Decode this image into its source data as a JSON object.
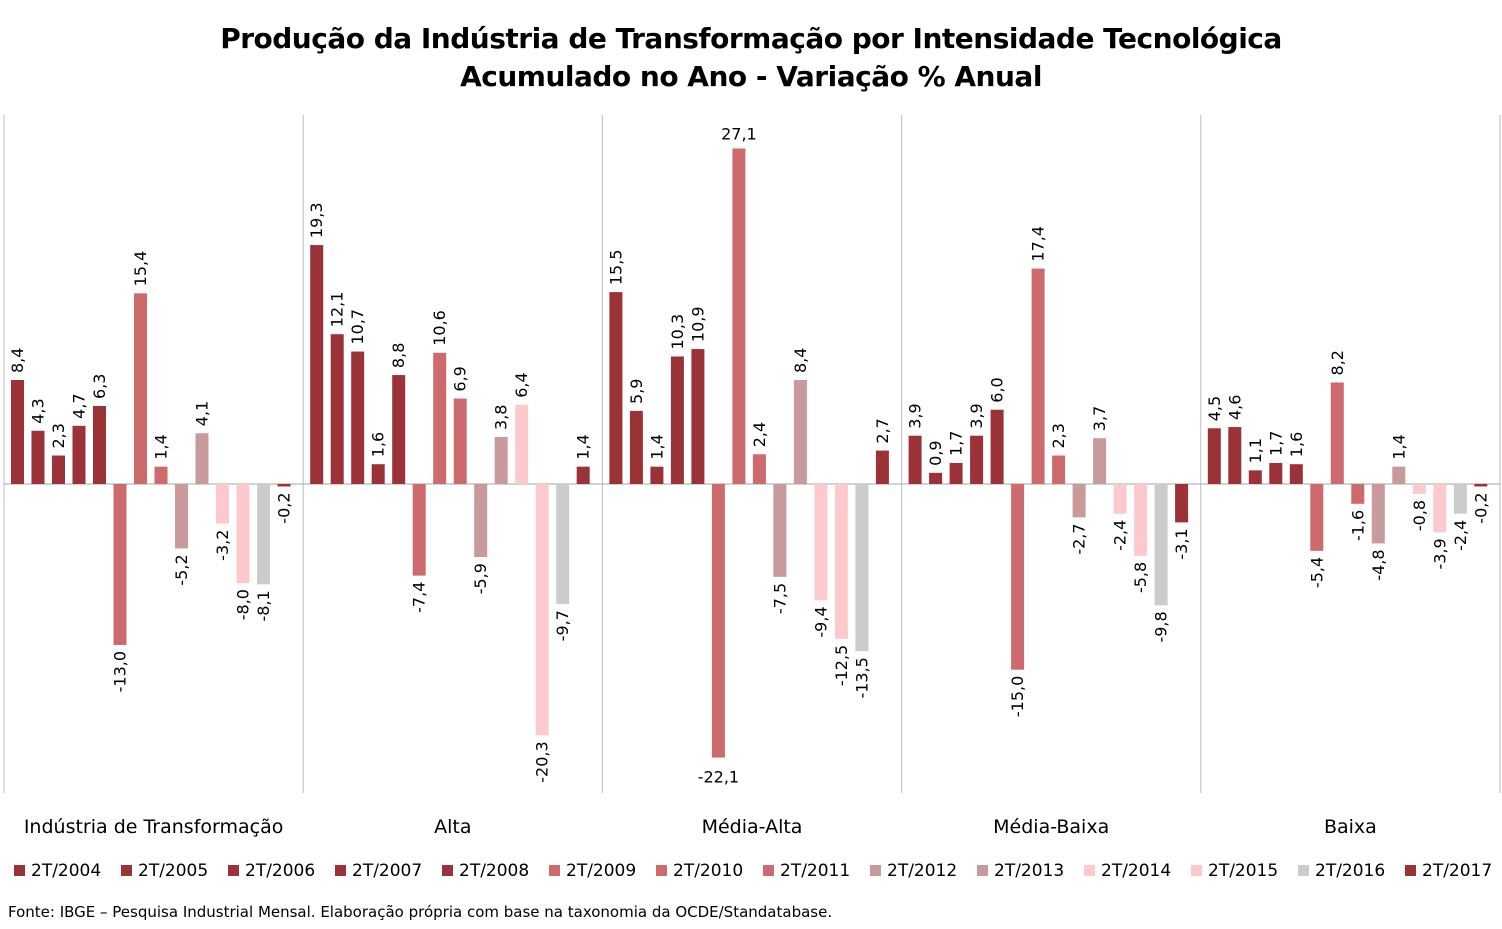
{
  "chart_data": {
    "type": "bar",
    "title": "Produção da Indústria de Transformação por Intensidade Tecnológica",
    "subtitle": "Acumulado no Ano - Variação % Anual",
    "categories": [
      "Indústria de Transformação",
      "Alta",
      "Média-Alta",
      "Média-Baixa",
      "Baixa"
    ],
    "series": [
      {
        "name": "2T/2004",
        "color": "#9b3237",
        "values": [
          8.4,
          19.3,
          15.5,
          3.9,
          4.5
        ],
        "labels": [
          "8,4",
          "19,3",
          "15,5",
          "3,9",
          "4,5"
        ]
      },
      {
        "name": "2T/2005",
        "color": "#9b3237",
        "values": [
          4.3,
          12.1,
          5.9,
          0.9,
          4.6
        ],
        "labels": [
          "4,3",
          "12,1",
          "5,9",
          "0,9",
          "4,6"
        ]
      },
      {
        "name": "2T/2006",
        "color": "#9b3237",
        "values": [
          2.3,
          10.7,
          1.4,
          1.7,
          1.1
        ],
        "labels": [
          "2,3",
          "10,7",
          "1,4",
          "1,7",
          "1,1"
        ]
      },
      {
        "name": "2T/2007",
        "color": "#9b3237",
        "values": [
          4.7,
          1.6,
          10.3,
          3.9,
          1.7
        ],
        "labels": [
          "4,7",
          "1,6",
          "10,3",
          "3,9",
          "1,7"
        ]
      },
      {
        "name": "2T/2008",
        "color": "#9b3237",
        "values": [
          6.3,
          8.8,
          10.9,
          6.0,
          1.6
        ],
        "labels": [
          "6,3",
          "8,8",
          "10,9",
          "6,0",
          "1,6"
        ]
      },
      {
        "name": "2T/2009",
        "color": "#cd6a6d",
        "values": [
          -13.0,
          -7.4,
          -22.1,
          -15.0,
          -5.4
        ],
        "labels": [
          "-13,0",
          "-7,4",
          "-22,1",
          "-15,0",
          "-5,4"
        ]
      },
      {
        "name": "2T/2010",
        "color": "#cd6a6d",
        "values": [
          15.4,
          10.6,
          27.1,
          17.4,
          8.2
        ],
        "labels": [
          "15,4",
          "10,6",
          "27,1",
          "17,4",
          "8,2"
        ]
      },
      {
        "name": "2T/2011",
        "color": "#cd6a6d",
        "values": [
          1.4,
          6.9,
          2.4,
          2.3,
          -1.6
        ],
        "labels": [
          "1,4",
          "6,9",
          "2,4",
          "2,3",
          "-1,6"
        ]
      },
      {
        "name": "2T/2012",
        "color": "#c99a9b",
        "values": [
          -5.2,
          -5.9,
          -7.5,
          -2.7,
          -4.8
        ],
        "labels": [
          "-5,2",
          "-5,9",
          "-7,5",
          "-2,7",
          "-4,8"
        ]
      },
      {
        "name": "2T/2013",
        "color": "#c99a9b",
        "values": [
          4.1,
          3.8,
          8.4,
          3.7,
          1.4
        ],
        "labels": [
          "4,1",
          "3,8",
          "8,4",
          "3,7",
          "1,4"
        ]
      },
      {
        "name": "2T/2014",
        "color": "#fccacc",
        "values": [
          -3.2,
          6.4,
          -9.4,
          -2.4,
          -0.8
        ],
        "labels": [
          "-3,2",
          "6,4",
          "-9,4",
          "-2,4",
          "-0,8"
        ]
      },
      {
        "name": "2T/2015",
        "color": "#fccacc",
        "values": [
          -8.0,
          -20.3,
          -12.5,
          -5.8,
          -3.9
        ],
        "labels": [
          "-8,0",
          "-20,3",
          "-12,5",
          "-5,8",
          "-3,9"
        ]
      },
      {
        "name": "2T/2016",
        "color": "#cccccc",
        "values": [
          -8.1,
          -9.7,
          -13.5,
          -9.8,
          -2.4
        ],
        "labels": [
          "-8,1",
          "-9,7",
          "-13,5",
          "-9,8",
          "-2,4"
        ]
      },
      {
        "name": "2T/2017",
        "color": "#9b3237",
        "values": [
          -0.2,
          1.4,
          2.7,
          -3.1,
          -0.2
        ],
        "labels": [
          "-0,2",
          "1,4",
          "2,7",
          "-3,1",
          "-0,2"
        ]
      }
    ],
    "data_labels": true,
    "legend": "bottom",
    "grid": false
  },
  "source_note": "Fonte: IBGE – Pesquisa Industrial Mensal. Elaboração própria com base na taxonomia da OCDE/Standatabase."
}
